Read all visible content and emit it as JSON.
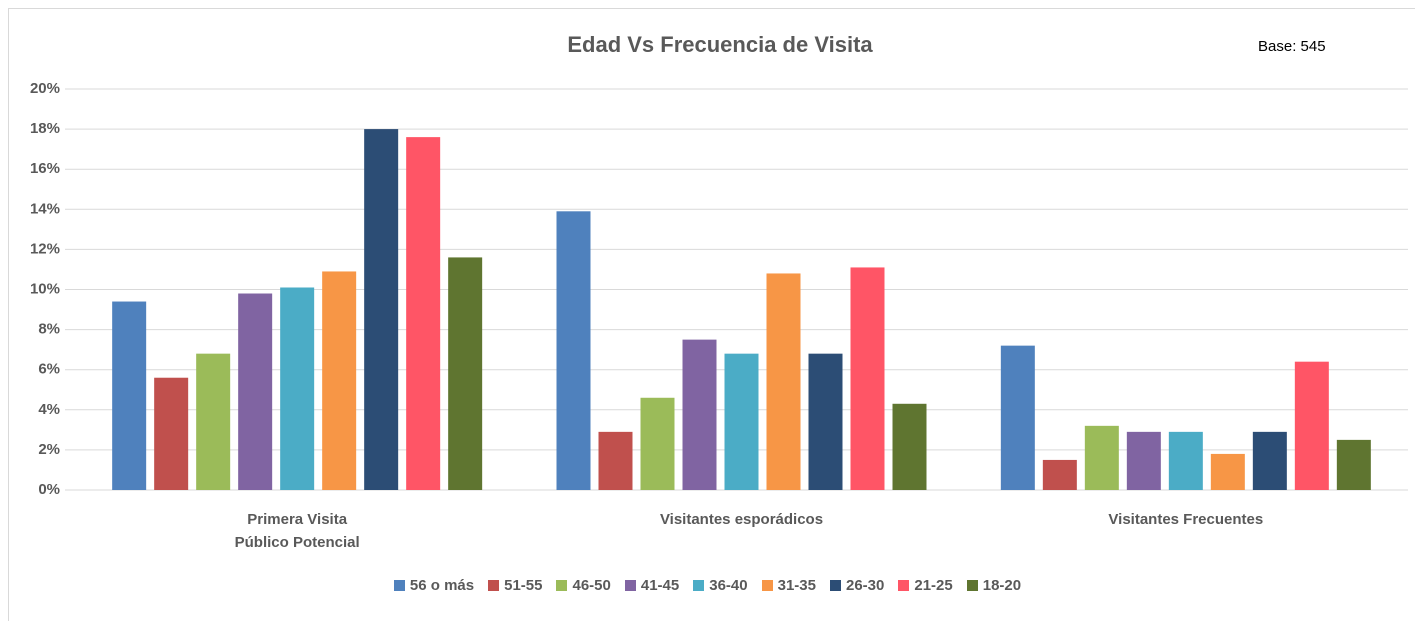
{
  "chart_data": {
    "type": "bar",
    "title": "Edad Vs Frecuencia de Visita",
    "subtitle": "Base: 545",
    "categories": [
      "Primera Visita\nPúblico Potencial",
      "Visitantes esporádicos",
      "Visitantes Frecuentes"
    ],
    "series": [
      {
        "name": "56 o más",
        "color": "#4f81bd",
        "values": [
          9.4,
          13.9,
          7.2
        ]
      },
      {
        "name": "51-55",
        "color": "#c0504d",
        "values": [
          5.6,
          2.9,
          1.5
        ]
      },
      {
        "name": "46-50",
        "color": "#9bbb59",
        "values": [
          6.8,
          4.6,
          3.2
        ]
      },
      {
        "name": "41-45",
        "color": "#8064a2",
        "values": [
          9.8,
          7.5,
          2.9
        ]
      },
      {
        "name": "36-40",
        "color": "#4bacc6",
        "values": [
          10.1,
          6.8,
          2.9
        ]
      },
      {
        "name": "31-35",
        "color": "#f79646",
        "values": [
          10.9,
          10.8,
          1.8
        ]
      },
      {
        "name": "26-30",
        "color": "#2c4d75",
        "values": [
          18.0,
          6.8,
          2.9
        ]
      },
      {
        "name": "21-25",
        "color": "#ff5566",
        "values": [
          17.6,
          11.1,
          6.4
        ]
      },
      {
        "name": "18-20",
        "color": "#5f7530",
        "values": [
          11.6,
          4.3,
          2.5
        ]
      }
    ],
    "ylim": [
      0,
      20
    ],
    "yticks": [
      {
        "value": 0,
        "label": "0%"
      },
      {
        "value": 2,
        "label": "2%"
      },
      {
        "value": 4,
        "label": "4%"
      },
      {
        "value": 6,
        "label": "6%"
      },
      {
        "value": 8,
        "label": "8%"
      },
      {
        "value": 10,
        "label": "10%"
      },
      {
        "value": 12,
        "label": "12%"
      },
      {
        "value": 14,
        "label": "14%"
      },
      {
        "value": 16,
        "label": "16%"
      },
      {
        "value": 18,
        "label": "18%"
      },
      {
        "value": 20,
        "label": "20%"
      }
    ],
    "grid": true,
    "legend": "bottom"
  }
}
